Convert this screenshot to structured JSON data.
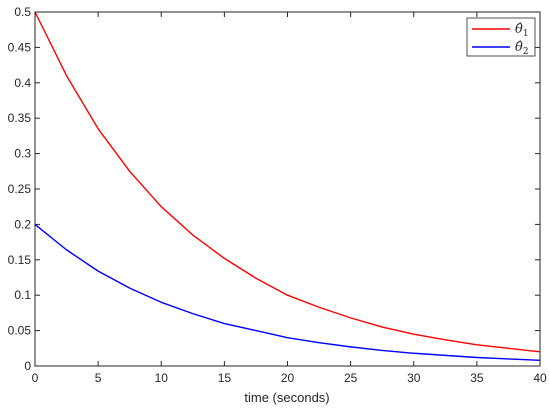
{
  "chart_data": {
    "type": "line",
    "xlabel": "time (seconds)",
    "ylabel": "",
    "xlim": [
      0,
      40
    ],
    "ylim": [
      0,
      0.5
    ],
    "xticks": [
      0,
      5,
      10,
      15,
      20,
      25,
      30,
      35,
      40
    ],
    "yticks": [
      0,
      0.05,
      0.1,
      0.15,
      0.2,
      0.25,
      0.3,
      0.35,
      0.4,
      0.45,
      0.5
    ],
    "xtick_labels": [
      "0",
      "5",
      "10",
      "15",
      "20",
      "25",
      "30",
      "35",
      "40"
    ],
    "ytick_labels": [
      "0",
      "0.05",
      "0.1",
      "0.15",
      "0.2",
      "0.25",
      "0.3",
      "0.35",
      "0.4",
      "0.45",
      "0.5"
    ],
    "grid": false,
    "legend_position": "top-right",
    "x": [
      0,
      2.5,
      5,
      7.5,
      10,
      12.5,
      15,
      17.5,
      20,
      22.5,
      25,
      27.5,
      30,
      32.5,
      35,
      37.5,
      40
    ],
    "series": [
      {
        "name": "θ̂1",
        "legend_symbol": "θ̂",
        "legend_subscript": "1",
        "color": "#ff0000",
        "values": [
          0.5,
          0.41,
          0.335,
          0.275,
          0.225,
          0.185,
          0.152,
          0.124,
          0.1,
          0.083,
          0.068,
          0.055,
          0.045,
          0.037,
          0.03,
          0.025,
          0.02
        ]
      },
      {
        "name": "θ̂2",
        "legend_symbol": "θ̂",
        "legend_subscript": "2",
        "color": "#0000ff",
        "values": [
          0.2,
          0.164,
          0.134,
          0.11,
          0.09,
          0.074,
          0.06,
          0.05,
          0.04,
          0.033,
          0.027,
          0.022,
          0.018,
          0.015,
          0.012,
          0.01,
          0.008
        ]
      }
    ]
  }
}
